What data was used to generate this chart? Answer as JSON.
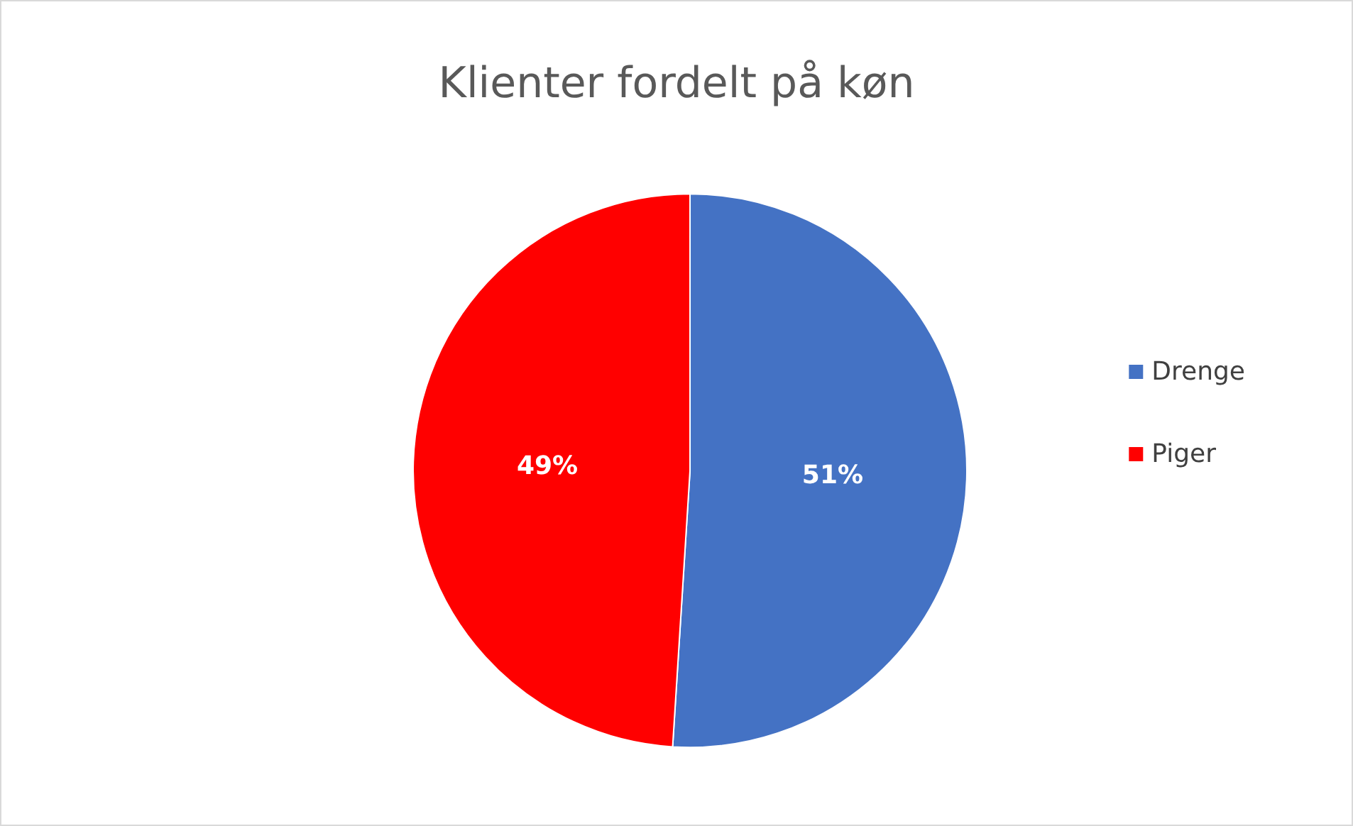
{
  "chart_data": {
    "type": "pie",
    "title": "Klienter fordelt på køn",
    "categories": [
      "Drenge",
      "Piger"
    ],
    "values": [
      51,
      49
    ],
    "colors": [
      "#4472c4",
      "#ff0000"
    ],
    "value_labels": [
      "51%",
      "49%"
    ],
    "legend": "right"
  }
}
